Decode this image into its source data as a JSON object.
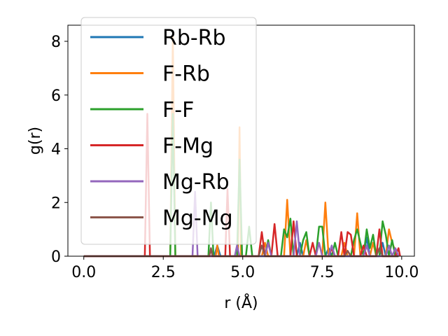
{
  "chart_data": {
    "type": "line",
    "title": "",
    "xlabel": "r (Å)",
    "ylabel": "g(r)",
    "xlim": [
      -0.5,
      10.4
    ],
    "ylim": [
      0,
      8.6
    ],
    "xticks": [
      0.0,
      2.5,
      5.0,
      7.5,
      10.0
    ],
    "xtick_labels": [
      "0.0",
      "2.5",
      "5.0",
      "7.5",
      "10.0"
    ],
    "yticks": [
      0,
      2,
      4,
      6,
      8
    ],
    "ytick_labels": [
      "0",
      "2",
      "4",
      "6",
      "8"
    ],
    "grid": false,
    "legend_position": "top-left",
    "series": [
      {
        "name": "Rb-Rb",
        "color": "#1f77b4",
        "points": [
          [
            0,
            0
          ],
          [
            4.1,
            0
          ],
          [
            4.2,
            0.4
          ],
          [
            4.3,
            0
          ],
          [
            6.7,
            0
          ],
          [
            6.8,
            0.5
          ],
          [
            6.9,
            0
          ],
          [
            7.6,
            0
          ],
          [
            7.7,
            0.3
          ],
          [
            7.8,
            0
          ],
          [
            8.8,
            0
          ],
          [
            8.9,
            0.7
          ],
          [
            9.0,
            0
          ],
          [
            9.3,
            0
          ],
          [
            9.4,
            0.5
          ],
          [
            9.5,
            0
          ],
          [
            9.9,
            0
          ]
        ]
      },
      {
        "name": "F-Rb",
        "color": "#ff7f0e",
        "points": [
          [
            0,
            0
          ],
          [
            2.72,
            0
          ],
          [
            2.8,
            8.2
          ],
          [
            2.88,
            0
          ],
          [
            4.15,
            0
          ],
          [
            4.2,
            0.4
          ],
          [
            4.25,
            0
          ],
          [
            4.85,
            0
          ],
          [
            4.9,
            4.8
          ],
          [
            4.95,
            0
          ],
          [
            5.6,
            0
          ],
          [
            5.7,
            0.5
          ],
          [
            5.8,
            0
          ],
          [
            6.3,
            0
          ],
          [
            6.4,
            2.1
          ],
          [
            6.5,
            0
          ],
          [
            6.9,
            0
          ],
          [
            7.0,
            0.6
          ],
          [
            7.1,
            0
          ],
          [
            7.5,
            0
          ],
          [
            7.6,
            2.0
          ],
          [
            7.7,
            0
          ],
          [
            8.1,
            0
          ],
          [
            8.2,
            0.5
          ],
          [
            8.3,
            0
          ],
          [
            8.5,
            0
          ],
          [
            8.6,
            1.6
          ],
          [
            8.7,
            0
          ],
          [
            9.0,
            0
          ],
          [
            9.1,
            0.5
          ],
          [
            9.2,
            0
          ],
          [
            9.5,
            0
          ],
          [
            9.6,
            1.0
          ],
          [
            9.7,
            0.5
          ],
          [
            9.8,
            0.2
          ],
          [
            9.9,
            0
          ]
        ]
      },
      {
        "name": "F-F",
        "color": "#2ca02c",
        "points": [
          [
            0,
            0
          ],
          [
            2.72,
            0
          ],
          [
            2.8,
            5.3
          ],
          [
            2.88,
            0
          ],
          [
            3.92,
            0
          ],
          [
            4.0,
            2.0
          ],
          [
            4.08,
            0
          ],
          [
            4.82,
            0
          ],
          [
            4.9,
            3.6
          ],
          [
            4.98,
            0
          ],
          [
            5.1,
            0
          ],
          [
            5.2,
            1.1
          ],
          [
            5.3,
            0
          ],
          [
            5.7,
            0
          ],
          [
            5.8,
            0.6
          ],
          [
            5.9,
            0
          ],
          [
            6.2,
            0
          ],
          [
            6.3,
            1.0
          ],
          [
            6.4,
            0.7
          ],
          [
            6.5,
            1.4
          ],
          [
            6.6,
            0
          ],
          [
            6.8,
            0
          ],
          [
            6.9,
            0.6
          ],
          [
            7.0,
            0.9
          ],
          [
            7.1,
            0
          ],
          [
            7.3,
            0
          ],
          [
            7.4,
            1.1
          ],
          [
            7.5,
            1.1
          ],
          [
            7.6,
            0
          ],
          [
            7.8,
            0
          ],
          [
            7.9,
            0.5
          ],
          [
            8.0,
            0
          ],
          [
            8.4,
            0
          ],
          [
            8.5,
            0.6
          ],
          [
            8.6,
            1.0
          ],
          [
            8.7,
            0.5
          ],
          [
            8.8,
            0
          ],
          [
            8.9,
            1.0
          ],
          [
            9.0,
            0.3
          ],
          [
            9.1,
            0.8
          ],
          [
            9.2,
            0
          ],
          [
            9.3,
            0
          ],
          [
            9.4,
            1.3
          ],
          [
            9.5,
            0.8
          ],
          [
            9.6,
            0
          ],
          [
            9.7,
            0.6
          ],
          [
            9.8,
            0
          ],
          [
            9.9,
            0
          ]
        ]
      },
      {
        "name": "F-Mg",
        "color": "#d62728",
        "points": [
          [
            0,
            0
          ],
          [
            1.92,
            0
          ],
          [
            2.0,
            5.3
          ],
          [
            2.08,
            0
          ],
          [
            4.45,
            0
          ],
          [
            4.52,
            2.5
          ],
          [
            4.6,
            0
          ],
          [
            5.5,
            0
          ],
          [
            5.6,
            0.9
          ],
          [
            5.7,
            0
          ],
          [
            5.9,
            0
          ],
          [
            6.0,
            1.2
          ],
          [
            6.1,
            0
          ],
          [
            6.5,
            0
          ],
          [
            6.6,
            1.3
          ],
          [
            6.7,
            0
          ],
          [
            7.1,
            0
          ],
          [
            7.2,
            0.5
          ],
          [
            7.3,
            0
          ],
          [
            7.7,
            0
          ],
          [
            7.8,
            0.3
          ],
          [
            7.9,
            0
          ],
          [
            8.0,
            0
          ],
          [
            8.1,
            0.9
          ],
          [
            8.2,
            0
          ],
          [
            8.3,
            0.9
          ],
          [
            8.4,
            0.8
          ],
          [
            8.5,
            0
          ],
          [
            8.7,
            0
          ],
          [
            8.8,
            0.4
          ],
          [
            8.9,
            0
          ],
          [
            9.2,
            0
          ],
          [
            9.3,
            1.0
          ],
          [
            9.4,
            0
          ],
          [
            9.8,
            0
          ],
          [
            9.9,
            0.3
          ],
          [
            9.95,
            0
          ]
        ]
      },
      {
        "name": "Mg-Rb",
        "color": "#9467bd",
        "points": [
          [
            0,
            0
          ],
          [
            3.42,
            0
          ],
          [
            3.5,
            2.4
          ],
          [
            3.58,
            0
          ],
          [
            4.75,
            0
          ],
          [
            4.82,
            0.4
          ],
          [
            4.9,
            0
          ],
          [
            5.7,
            0
          ],
          [
            5.8,
            0.5
          ],
          [
            5.9,
            0
          ],
          [
            6.6,
            0
          ],
          [
            6.7,
            1.3
          ],
          [
            6.8,
            0
          ],
          [
            7.3,
            0
          ],
          [
            7.4,
            0.5
          ],
          [
            7.5,
            0
          ],
          [
            7.7,
            0
          ],
          [
            7.8,
            0.4
          ],
          [
            7.9,
            0
          ],
          [
            8.8,
            0
          ],
          [
            8.9,
            0.4
          ],
          [
            9.0,
            0
          ],
          [
            9.5,
            0
          ],
          [
            9.6,
            0.4
          ],
          [
            9.7,
            0
          ],
          [
            9.8,
            0.3
          ],
          [
            9.9,
            0
          ]
        ]
      },
      {
        "name": "Mg-Mg",
        "color": "#8c564b",
        "points": [
          [
            0,
            0
          ],
          [
            3.95,
            0
          ],
          [
            4.0,
            0.3
          ],
          [
            4.05,
            0
          ],
          [
            5.5,
            0
          ],
          [
            5.6,
            0.4
          ],
          [
            5.7,
            0
          ],
          [
            8.2,
            0
          ],
          [
            8.3,
            0.2
          ],
          [
            8.4,
            0
          ],
          [
            9.2,
            0
          ],
          [
            9.3,
            0.3
          ],
          [
            9.4,
            0
          ],
          [
            9.9,
            0
          ]
        ]
      }
    ]
  }
}
